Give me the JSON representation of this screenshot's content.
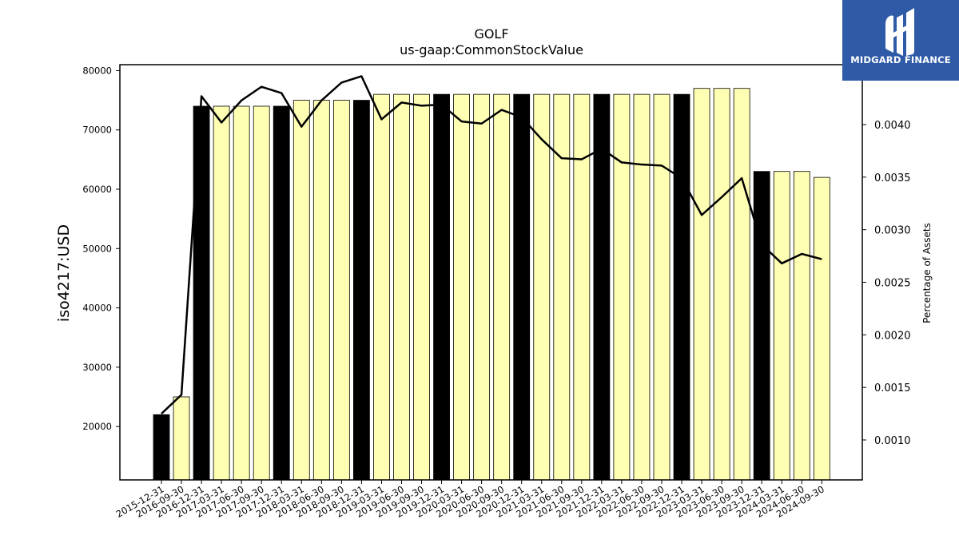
{
  "chart_data": {
    "type": "bar",
    "title": "GOLF",
    "subtitle": "us-gaap:CommonStockValue",
    "ylabel": "iso4217:USD",
    "y2label": "Percentage of Assets",
    "categories": [
      "2015-12-31",
      "2016-09-30",
      "2016-12-31",
      "2017-03-31",
      "2017-06-30",
      "2017-09-30",
      "2017-12-31",
      "2018-03-31",
      "2018-06-30",
      "2018-09-30",
      "2018-12-31",
      "2019-03-31",
      "2019-06-30",
      "2019-09-30",
      "2019-12-31",
      "2020-03-31",
      "2020-06-30",
      "2020-09-30",
      "2020-12-31",
      "2021-03-31",
      "2021-06-30",
      "2021-09-30",
      "2021-12-31",
      "2022-03-31",
      "2022-06-30",
      "2022-09-30",
      "2022-12-31",
      "2023-03-31",
      "2023-06-30",
      "2023-09-30",
      "2023-12-31",
      "2024-03-31",
      "2024-06-30",
      "2024-09-30"
    ],
    "values": [
      22000,
      25000,
      74000,
      74000,
      74000,
      74000,
      74000,
      75000,
      75000,
      75000,
      75000,
      76000,
      76000,
      76000,
      76000,
      76000,
      76000,
      76000,
      76000,
      76000,
      76000,
      76000,
      76000,
      76000,
      76000,
      76000,
      76000,
      77000,
      77000,
      77000,
      63000,
      63000,
      63000,
      62000
    ],
    "annual": [
      true,
      false,
      true,
      false,
      false,
      false,
      true,
      false,
      false,
      false,
      true,
      false,
      false,
      false,
      true,
      false,
      false,
      false,
      true,
      false,
      false,
      false,
      true,
      false,
      false,
      false,
      true,
      false,
      false,
      false,
      true,
      false,
      false,
      false
    ],
    "line_values": [
      0.00125,
      0.00143,
      0.00427,
      0.00402,
      0.00423,
      0.00436,
      0.0043,
      0.00398,
      0.00423,
      0.0044,
      0.00446,
      0.00405,
      0.00421,
      0.00418,
      0.00419,
      0.00403,
      0.00401,
      0.00414,
      0.00407,
      0.00386,
      0.00368,
      0.00367,
      0.00377,
      0.00364,
      0.00362,
      0.00361,
      0.00349,
      0.00314,
      0.00331,
      0.00349,
      0.00286,
      0.00268,
      0.00277,
      0.00272
    ],
    "ylim": [
      11000,
      81000
    ],
    "y_ticks": [
      20000,
      30000,
      40000,
      50000,
      60000,
      70000,
      80000
    ],
    "y2lim": [
      0.00062,
      0.00457
    ],
    "y2_ticks": [
      "0.0010",
      "0.0015",
      "0.0020",
      "0.0025",
      "0.0030",
      "0.0035",
      "0.0040"
    ],
    "colors": {
      "annual_bar": "#000000",
      "quarter_bar": "#ffffb3",
      "bar_edge": "#000000",
      "line": "#000000"
    },
    "grid": false,
    "legend": "none"
  },
  "logo": {
    "text": "MIDGARD FINANCE",
    "background": "#2f5aa8",
    "icon": "midgard-logo-icon"
  }
}
